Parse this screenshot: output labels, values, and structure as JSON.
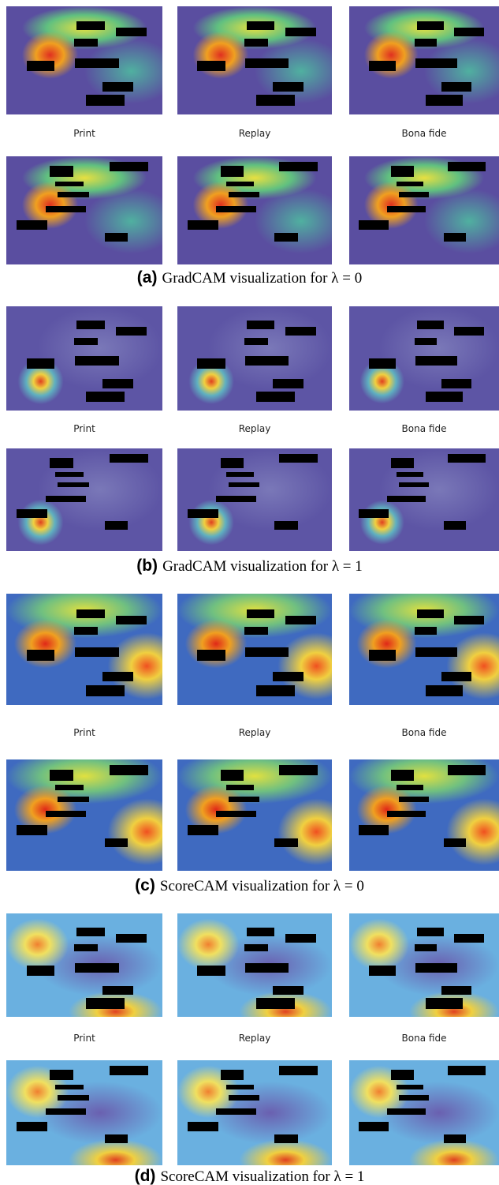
{
  "panels": [
    {
      "label": "(a)",
      "caption": "GradCAM visualization for λ = 0",
      "columns": [
        "Print",
        "Replay",
        "Bona fide"
      ]
    },
    {
      "label": "(b)",
      "caption": "GradCAM visualization for λ = 1",
      "columns": [
        "Print",
        "Replay",
        "Bona fide"
      ]
    },
    {
      "label": "(c)",
      "caption": "ScoreCAM visualization for λ = 0",
      "columns": [
        "Print",
        "Replay",
        "Bona fide"
      ]
    },
    {
      "label": "(d)",
      "caption": "ScoreCAM visualization for λ = 1",
      "columns": [
        "Print",
        "Replay",
        "Bona fide"
      ]
    }
  ]
}
